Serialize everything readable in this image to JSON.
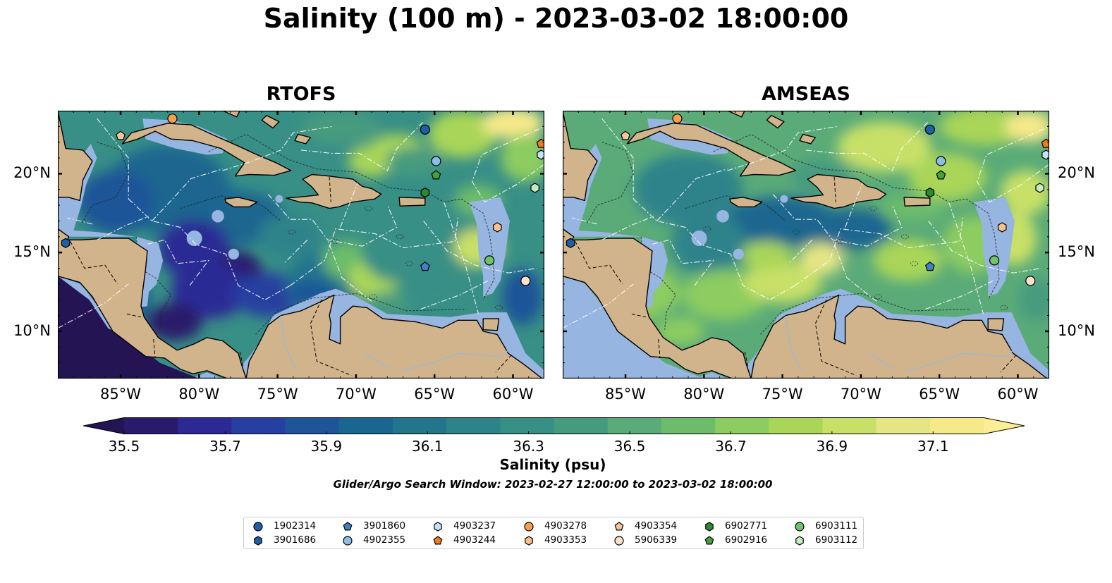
{
  "title": "Salinity (100 m) - 2023-03-02 18:00:00",
  "panels": [
    {
      "title": "RTOFS",
      "model": "rtofs"
    },
    {
      "title": "AMSEAS",
      "model": "amseas"
    }
  ],
  "axes": {
    "lon_ticks": [
      "85°W",
      "80°W",
      "75°W",
      "70°W",
      "65°W",
      "60°W"
    ],
    "lon_values": [
      -85,
      -80,
      -75,
      -70,
      -65,
      -60
    ],
    "lat_ticks": [
      "20°N",
      "15°N",
      "10°N"
    ],
    "lat_values": [
      20,
      15,
      10
    ],
    "lon_range": [
      -89,
      -58
    ],
    "lat_range": [
      7,
      24
    ]
  },
  "colorbar": {
    "label": "Salinity (psu)",
    "ticks": [
      "35.5",
      "35.7",
      "35.9",
      "36.1",
      "36.3",
      "36.5",
      "36.7",
      "36.9",
      "37.1"
    ],
    "range": [
      35.5,
      37.2
    ],
    "step": 0.1,
    "extend": "both",
    "colors": [
      "#2a1a6b",
      "#2c2995",
      "#2540a0",
      "#1d5598",
      "#1a6690",
      "#23758c",
      "#2d838a",
      "#388f86",
      "#469b7f",
      "#5aab78",
      "#6cbc6b",
      "#8ccc60",
      "#a9d658",
      "#c8e068",
      "#e6e585",
      "#f6e98a"
    ],
    "under_color": "#251454",
    "over_color": "#fbee94"
  },
  "search_window": "Glider/Argo Search Window: 2023-02-27 12:00:00 to 2023-03-02 18:00:00",
  "map_colors": {
    "land": "#d2b48c",
    "shelf_water": "#96b5e0",
    "coast": "#000000"
  },
  "floats": [
    {
      "id": "1902314",
      "marker": "circle",
      "color": "#1f5fa8",
      "lon": -65.6,
      "lat": 22.8
    },
    {
      "id": "3901686",
      "marker": "hexagon",
      "color": "#1f5fa8",
      "lon": -88.5,
      "lat": 15.6
    },
    {
      "id": "3901860",
      "marker": "pentagon",
      "color": "#3e82c6",
      "lon": -65.6,
      "lat": 14.1
    },
    {
      "id": "4902355",
      "marker": "circle",
      "color": "#8bbde8",
      "lon": -64.9,
      "lat": 20.8
    },
    {
      "id": "4903237",
      "marker": "hexagon",
      "color": "#c6e2f6",
      "lon": -58.2,
      "lat": 21.2
    },
    {
      "id": "4903244",
      "marker": "pentagon",
      "color": "#f47b1c",
      "lon": -58.2,
      "lat": 21.9
    },
    {
      "id": "4903278",
      "marker": "circle",
      "color": "#f6a04b",
      "lon": -81.7,
      "lat": 23.5
    },
    {
      "id": "4903353",
      "marker": "hexagon",
      "color": "#f8c08f",
      "lon": -61.0,
      "lat": 16.6
    },
    {
      "id": "4903354",
      "marker": "pentagon",
      "color": "#f8c59a",
      "lon": -85.0,
      "lat": 22.4
    },
    {
      "id": "5906339",
      "marker": "circle",
      "color": "#fde1c9",
      "lon": -59.2,
      "lat": 13.2
    },
    {
      "id": "6902771",
      "marker": "hexagon",
      "color": "#2e8a2e",
      "lon": -65.6,
      "lat": 18.8
    },
    {
      "id": "6902916",
      "marker": "pentagon",
      "color": "#46a33a",
      "lon": -64.9,
      "lat": 19.9
    },
    {
      "id": "6903111",
      "marker": "circle",
      "color": "#70c46a",
      "lon": -61.5,
      "lat": 14.5
    },
    {
      "id": "6903112",
      "marker": "hexagon",
      "color": "#c4ecbc",
      "lon": -58.6,
      "lat": 19.1
    }
  ]
}
